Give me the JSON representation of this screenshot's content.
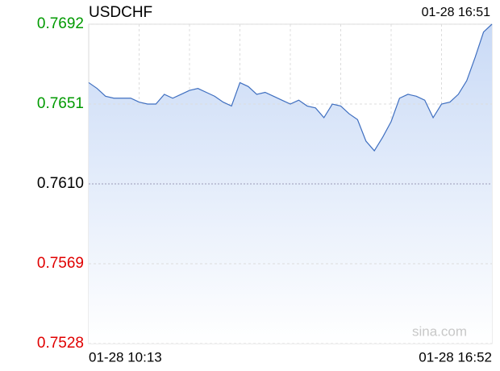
{
  "chart_data": {
    "type": "line",
    "title": "USDCHF",
    "time": "01-28 16:51",
    "watermark": "sina.com",
    "categories": [
      "01-28 10:13",
      null,
      null,
      null,
      null,
      null,
      null,
      null,
      null,
      null,
      null,
      null,
      null,
      null,
      null,
      null,
      null,
      null,
      null,
      null,
      null,
      null,
      null,
      null,
      null,
      null,
      null,
      null,
      null,
      null,
      null,
      null,
      null,
      null,
      null,
      null,
      null,
      null,
      null,
      null,
      null,
      null,
      null,
      null,
      null,
      null,
      null,
      null,
      "01-28 16:52"
    ],
    "series": [
      {
        "name": "USDCHF",
        "color": "#3f6fc0",
        "values": [
          0.7662,
          0.7659,
          0.7655,
          0.7654,
          0.7654,
          0.7654,
          0.7652,
          0.7651,
          0.7651,
          0.7656,
          0.7654,
          0.7656,
          0.7658,
          0.7659,
          0.7657,
          0.7655,
          0.7652,
          0.765,
          0.7662,
          0.766,
          0.7656,
          0.7657,
          0.7655,
          0.7653,
          0.7651,
          0.7653,
          0.765,
          0.7649,
          0.7644,
          0.7651,
          0.765,
          0.7646,
          0.7643,
          0.7632,
          0.7627,
          0.7634,
          0.7642,
          0.7654,
          0.7656,
          0.7655,
          0.7653,
          0.7644,
          0.7651,
          0.7652,
          0.7656,
          0.7663,
          0.7675,
          0.7688,
          0.7692
        ]
      }
    ],
    "ylim": [
      0.7528,
      0.7692
    ],
    "yticks": [
      0.7528,
      0.7569,
      {
        "value": 0.761,
        "label": "0.7610"
      },
      0.7651,
      0.7692
    ],
    "tick_colors": {
      "up": "#009a00",
      "flat": "#000000",
      "down": "#e00000"
    },
    "grid": true
  }
}
